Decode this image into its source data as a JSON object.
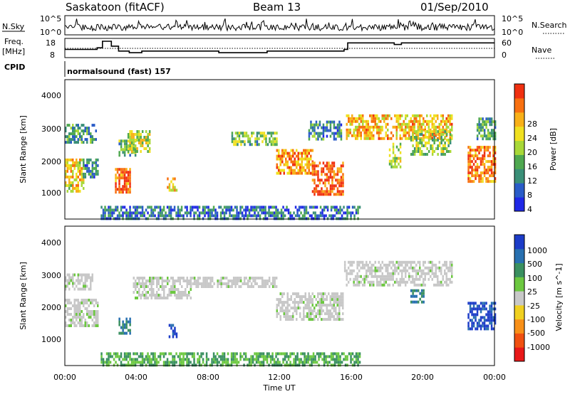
{
  "header": {
    "station": "Saskatoon (fitACF)",
    "beam": "Beam 13",
    "date": "01/Sep/2010"
  },
  "noise_panel": {
    "left_label": "N.Sky",
    "right_label": "N.Search",
    "left_ticks": [
      "10^5",
      "10^0"
    ],
    "right_ticks": [
      "10^5",
      "10^0"
    ]
  },
  "freq_panel": {
    "left_label_1": "Freq.",
    "left_label_2": "[MHz]",
    "right_label": "Nave",
    "left_ticks": [
      "18",
      "8"
    ],
    "right_ticks": [
      "60",
      "0"
    ],
    "freq_steps": [
      {
        "t": 0.0,
        "f": 13
      },
      {
        "t": 1.8,
        "f": 14
      },
      {
        "t": 2.1,
        "f": 18
      },
      {
        "t": 2.6,
        "f": 15
      },
      {
        "t": 3.0,
        "f": 12
      },
      {
        "t": 3.6,
        "f": 11
      },
      {
        "t": 4.3,
        "f": 12
      },
      {
        "t": 6.2,
        "f": 12
      },
      {
        "t": 8.6,
        "f": 11
      },
      {
        "t": 11.3,
        "f": 12
      },
      {
        "t": 15.6,
        "f": 13
      },
      {
        "t": 15.8,
        "f": 17
      },
      {
        "t": 18.4,
        "f": 16
      },
      {
        "t": 18.8,
        "f": 17
      },
      {
        "t": 24.0,
        "f": 17
      }
    ]
  },
  "cpid": {
    "label": "CPID",
    "text": "normalsound (fast) 157"
  },
  "power_panel": {
    "ylabel": "Slant Range [km]",
    "yticks": [
      "4000",
      "3000",
      "2000",
      "1000"
    ],
    "colorbar_label": "Power [dB]",
    "colorbar_ticks": [
      "28",
      "24",
      "20",
      "16",
      "12",
      "8",
      "4"
    ],
    "colors": [
      "#1f28e6",
      "#2a5cc8",
      "#3a8f78",
      "#4fa850",
      "#a8d838",
      "#f0e020",
      "#f8b018",
      "#f87010",
      "#f03010"
    ]
  },
  "velocity_panel": {
    "ylabel": "Slant Range [km]",
    "yticks": [
      "4000",
      "3000",
      "2000",
      "1000"
    ],
    "colorbar_label": "Velocity [m s^-1]",
    "colorbar_ticks": [
      "1000",
      "500",
      "100",
      "25",
      "-25",
      "-100",
      "-500",
      "-1000"
    ],
    "colors": [
      "#1c3cc8",
      "#2870b0",
      "#3a9060",
      "#6cc840",
      "#c8c8c8",
      "#f0d020",
      "#f89018",
      "#f05010",
      "#e81818"
    ]
  },
  "x_axis": {
    "label": "Time UT",
    "ticks": [
      "00:00",
      "04:00",
      "08:00",
      "12:00",
      "16:00",
      "20:00",
      "00:00"
    ]
  },
  "chart_data": {
    "type": "heatmap",
    "title": "Saskatoon (fitACF) Beam 13 01/Sep/2010",
    "xlabel": "Time UT",
    "ylabel": "Slant Range [km]",
    "xlim": [
      0,
      24
    ],
    "ylim": [
      180,
      4600
    ],
    "power_regions": [
      {
        "t0": 0.0,
        "t1": 1.0,
        "r0": 1100,
        "r1": 2100,
        "p": 20
      },
      {
        "t0": 0.0,
        "t1": 1.7,
        "r0": 2600,
        "r1": 3200,
        "p": 12
      },
      {
        "t0": 1.0,
        "t1": 1.8,
        "r0": 1500,
        "r1": 2100,
        "p": 10
      },
      {
        "t0": 2.8,
        "t1": 3.6,
        "r0": 1000,
        "r1": 1800,
        "p": 26
      },
      {
        "t0": 3.0,
        "t1": 3.9,
        "r0": 2200,
        "r1": 2700,
        "p": 14
      },
      {
        "t0": 3.5,
        "t1": 4.7,
        "r0": 2300,
        "r1": 3000,
        "p": 18
      },
      {
        "t0": 5.7,
        "t1": 6.2,
        "r0": 1100,
        "r1": 1500,
        "p": 22
      },
      {
        "t0": 9.3,
        "t1": 11.8,
        "r0": 2550,
        "r1": 2950,
        "p": 14
      },
      {
        "t0": 11.8,
        "t1": 13.8,
        "r0": 1600,
        "r1": 2400,
        "p": 24
      },
      {
        "t0": 13.8,
        "t1": 15.5,
        "r0": 1000,
        "r1": 2000,
        "p": 28
      },
      {
        "t0": 13.6,
        "t1": 15.4,
        "r0": 2700,
        "r1": 3300,
        "p": 10
      },
      {
        "t0": 15.7,
        "t1": 21.6,
        "r0": 2700,
        "r1": 3500,
        "p": 22
      },
      {
        "t0": 18.1,
        "t1": 18.7,
        "r0": 1800,
        "r1": 2600,
        "p": 18
      },
      {
        "t0": 19.3,
        "t1": 21.5,
        "r0": 2200,
        "r1": 3000,
        "p": 16
      },
      {
        "t0": 22.5,
        "t1": 24.0,
        "r0": 1400,
        "r1": 2500,
        "p": 26
      },
      {
        "t0": 23.0,
        "t1": 24.0,
        "r0": 2700,
        "r1": 3400,
        "p": 12
      },
      {
        "t0": 2.0,
        "t1": 16.5,
        "r0": 200,
        "r1": 600,
        "p": 8
      }
    ],
    "velocity_regions": [
      {
        "t0": 0.0,
        "t1": 1.8,
        "r0": 1400,
        "r1": 2300,
        "v": 10
      },
      {
        "t0": 0.0,
        "t1": 1.5,
        "r0": 2600,
        "r1": 3100,
        "v": 10
      },
      {
        "t0": 3.0,
        "t1": 3.6,
        "r0": 1200,
        "r1": 1700,
        "v": 300
      },
      {
        "t0": 5.8,
        "t1": 6.2,
        "r0": 1100,
        "r1": 1500,
        "v": 1000
      },
      {
        "t0": 3.8,
        "t1": 7.0,
        "r0": 2300,
        "r1": 3000,
        "v": 10
      },
      {
        "t0": 7.0,
        "t1": 11.8,
        "r0": 2700,
        "r1": 3000,
        "v": 10
      },
      {
        "t0": 11.8,
        "t1": 15.5,
        "r0": 1600,
        "r1": 2500,
        "v": 10
      },
      {
        "t0": 15.6,
        "t1": 21.6,
        "r0": 2700,
        "r1": 3500,
        "v": 10
      },
      {
        "t0": 19.3,
        "t1": 20.0,
        "r0": 2200,
        "r1": 2600,
        "v": 300
      },
      {
        "t0": 22.5,
        "t1": 24.0,
        "r0": 1300,
        "r1": 2200,
        "v": 800
      },
      {
        "t0": 2.0,
        "t1": 16.5,
        "r0": 200,
        "r1": 600,
        "v": 60
      }
    ]
  }
}
